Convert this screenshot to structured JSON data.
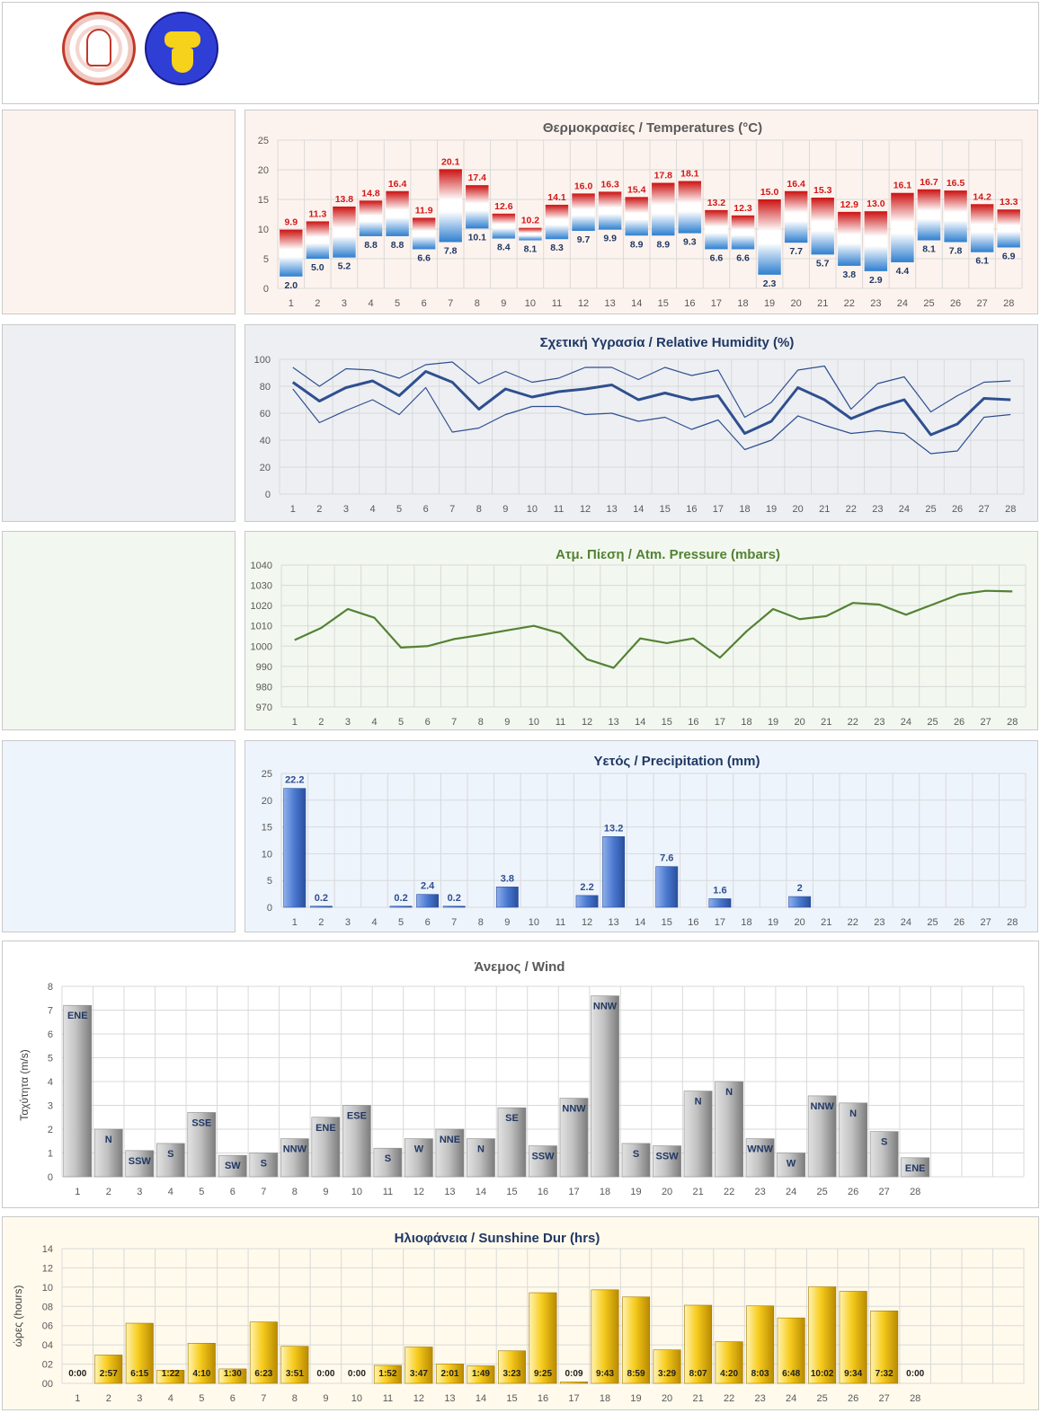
{
  "colors": {
    "temp_bg": "#fdf3ee",
    "hum_bg": "#edeff3",
    "pres_bg": "#f2f8ef",
    "prec_bg": "#eef4fc",
    "sun_bg": "#fffaec",
    "temp_title": "#595959",
    "hum_title": "#203864",
    "pres_title": "#548235",
    "prec_title": "#203864",
    "wind_title": "#595959",
    "sun_title": "#203864"
  },
  "header": {
    "logo_left": "university-seal",
    "logo_right": "meteo-club-logo"
  },
  "chart_data": [
    {
      "id": "temperature",
      "type": "bar",
      "title": "Θερμοκρασίες / Temperatures (°C)",
      "categories": [
        "1",
        "2",
        "3",
        "4",
        "5",
        "6",
        "7",
        "8",
        "9",
        "10",
        "11",
        "12",
        "13",
        "14",
        "15",
        "16",
        "17",
        "18",
        "19",
        "20",
        "21",
        "22",
        "23",
        "24",
        "25",
        "26",
        "27",
        "28"
      ],
      "series": [
        {
          "name": "max",
          "values": [
            9.9,
            11.3,
            13.8,
            14.8,
            16.4,
            11.9,
            20.1,
            17.4,
            12.6,
            10.2,
            14.1,
            16.0,
            16.3,
            15.4,
            17.8,
            18.1,
            13.2,
            12.3,
            15.0,
            16.4,
            15.3,
            12.9,
            13.0,
            16.1,
            16.7,
            16.5,
            14.2,
            13.3
          ]
        },
        {
          "name": "min",
          "values": [
            2.0,
            5.0,
            5.2,
            8.8,
            8.8,
            6.6,
            7.8,
            10.1,
            8.4,
            8.1,
            8.3,
            9.7,
            9.9,
            8.9,
            8.9,
            9.3,
            6.6,
            6.6,
            2.3,
            7.7,
            5.7,
            3.8,
            2.9,
            4.4,
            8.1,
            7.8,
            6.1,
            6.9
          ]
        }
      ],
      "max_labels": [
        "9.9",
        "11.3",
        "13.8",
        "14.8",
        "16.4",
        "11.9",
        "20.1",
        "17.4",
        "12.6",
        "10.2",
        "14.1",
        "16.0",
        "16.3",
        "15.4",
        "17.8",
        "18.1",
        "13.2",
        "12.3",
        "15.0",
        "16.4",
        "15.3",
        "12.9",
        "13.0",
        "16.1",
        "16.7",
        "16.5",
        "14.2",
        "13.3"
      ],
      "min_labels": [
        "2.0",
        "5.0",
        "5.2",
        "8.8",
        "8.8",
        "6.6",
        "7.8",
        "10.1",
        "8.4",
        "8.1",
        "8.3",
        "9.7",
        "9.9",
        "8.9",
        "8.9",
        "9.3",
        "6.6",
        "6.6",
        "2.3",
        "7.7",
        "5.7",
        "3.8",
        "2.9",
        "4.4",
        "8.1",
        "7.8",
        "6.1",
        "6.9"
      ],
      "ylim": [
        0,
        25
      ],
      "yticks": [
        "0",
        "5",
        "10",
        "15",
        "20",
        "25"
      ],
      "grid": true
    },
    {
      "id": "humidity",
      "type": "line",
      "title": "Σχετική Υγρασία / Relative Humidity (%)",
      "categories": [
        "1",
        "2",
        "3",
        "4",
        "5",
        "6",
        "7",
        "8",
        "9",
        "10",
        "11",
        "12",
        "13",
        "14",
        "15",
        "16",
        "17",
        "18",
        "19",
        "20",
        "21",
        "22",
        "23",
        "24",
        "25",
        "26",
        "27",
        "28"
      ],
      "series": [
        {
          "name": "max",
          "values": [
            94,
            80,
            93,
            92,
            86,
            96,
            98,
            82,
            91,
            83,
            86,
            94,
            94,
            85,
            94,
            88,
            92,
            57,
            68,
            92,
            95,
            63,
            82,
            87,
            61,
            73,
            83,
            84
          ]
        },
        {
          "name": "mean",
          "values": [
            83,
            69,
            79,
            84,
            73,
            91,
            83,
            63,
            78,
            72,
            76,
            78,
            81,
            70,
            75,
            70,
            73,
            45,
            54,
            79,
            70,
            56,
            64,
            70,
            44,
            52,
            71,
            70
          ]
        },
        {
          "name": "min",
          "values": [
            78,
            53,
            62,
            70,
            59,
            79,
            46,
            49,
            59,
            65,
            65,
            59,
            60,
            54,
            57,
            48,
            55,
            33,
            40,
            58,
            51,
            45,
            47,
            45,
            30,
            32,
            57,
            59
          ]
        }
      ],
      "ylim": [
        0,
        100
      ],
      "yticks": [
        "0",
        "20",
        "40",
        "60",
        "80",
        "100"
      ],
      "grid": true
    },
    {
      "id": "pressure",
      "type": "line",
      "title": "Ατμ. Πίεση / Atm. Pressure (mbars)",
      "categories": [
        "1",
        "2",
        "3",
        "4",
        "5",
        "6",
        "7",
        "8",
        "9",
        "10",
        "11",
        "12",
        "13",
        "14",
        "15",
        "16",
        "17",
        "18",
        "19",
        "20",
        "21",
        "22",
        "23",
        "24",
        "25",
        "26",
        "27",
        "28"
      ],
      "series": [
        {
          "name": "pressure",
          "values": [
            1003,
            1009,
            1018.3,
            1014,
            999.3,
            1000,
            1003.5,
            1005.5,
            1007.8,
            1010,
            1006.3,
            993.5,
            989.3,
            1003.8,
            1001.5,
            1003.8,
            994.3,
            1007.3,
            1018.3,
            1013.3,
            1014.8,
            1021.3,
            1020.5,
            1015.5,
            1020.5,
            1025.5,
            1027.3,
            1027
          ]
        }
      ],
      "ylim": [
        970,
        1040
      ],
      "yticks": [
        "970",
        "980",
        "990",
        "1000",
        "1010",
        "1020",
        "1030",
        "1040"
      ],
      "grid": true
    },
    {
      "id": "precipitation",
      "type": "bar",
      "title": "Υετός / Precipitation (mm)",
      "categories": [
        "1",
        "2",
        "3",
        "4",
        "5",
        "6",
        "7",
        "8",
        "9",
        "10",
        "11",
        "12",
        "13",
        "14",
        "15",
        "16",
        "17",
        "18",
        "19",
        "20",
        "21",
        "22",
        "23",
        "24",
        "25",
        "26",
        "27",
        "28"
      ],
      "values": [
        22.2,
        0.2,
        null,
        null,
        0.2,
        2.4,
        0.2,
        null,
        3.8,
        null,
        null,
        2.2,
        13.2,
        null,
        7.6,
        null,
        1.6,
        null,
        null,
        2,
        null,
        null,
        null,
        null,
        null,
        null,
        null,
        null
      ],
      "labels": [
        "22.2",
        "0.2",
        "",
        "",
        "0.2",
        "2.4",
        "0.2",
        "",
        "3.8",
        "",
        "",
        "2.2",
        "13.2",
        "",
        "7.6",
        "",
        "1.6",
        "",
        "",
        "2",
        "",
        "",
        "",
        "",
        "",
        "",
        "",
        ""
      ],
      "ylim": [
        0,
        25
      ],
      "yticks": [
        "0",
        "5",
        "10",
        "15",
        "20",
        "25"
      ],
      "grid": true
    },
    {
      "id": "wind",
      "type": "bar",
      "title": "Άνεμος / Wind",
      "ylabel": "Ταχύτητα  (m/s)",
      "categories": [
        "1",
        "2",
        "3",
        "4",
        "5",
        "6",
        "7",
        "8",
        "9",
        "10",
        "11",
        "12",
        "13",
        "14",
        "15",
        "16",
        "17",
        "18",
        "19",
        "20",
        "21",
        "22",
        "23",
        "24",
        "25",
        "26",
        "27",
        "28"
      ],
      "values": [
        7.2,
        2.0,
        1.1,
        1.4,
        2.7,
        0.9,
        1.0,
        1.6,
        2.5,
        3.0,
        1.2,
        1.6,
        2.0,
        1.6,
        2.9,
        1.3,
        3.3,
        7.6,
        1.4,
        1.3,
        3.6,
        4.0,
        1.6,
        1.0,
        3.4,
        3.1,
        1.9,
        0.8
      ],
      "directions": [
        "ENE",
        "N",
        "SSW",
        "S",
        "SSE",
        "SW",
        "S",
        "NNW",
        "ENE",
        "ESE",
        "S",
        "W",
        "NNE",
        "N",
        "SE",
        "SSW",
        "NNW",
        "NNW",
        "S",
        "SSW",
        "N",
        "N",
        "WNW",
        "W",
        "NNW",
        "N",
        "S",
        "ENE"
      ],
      "ylim": [
        0,
        8
      ],
      "yticks": [
        "0",
        "1",
        "2",
        "3",
        "4",
        "5",
        "6",
        "7",
        "8"
      ],
      "grid": true
    },
    {
      "id": "sunshine",
      "type": "bar",
      "title": "Ηλιοφάνεια / Sunshine Dur (hrs)",
      "ylabel": "ώρες (hours)",
      "categories": [
        "1",
        "2",
        "3",
        "4",
        "5",
        "6",
        "7",
        "8",
        "9",
        "10",
        "11",
        "12",
        "13",
        "14",
        "15",
        "16",
        "17",
        "18",
        "19",
        "20",
        "21",
        "22",
        "23",
        "24",
        "25",
        "26",
        "27",
        "28"
      ],
      "values": [
        0,
        2.95,
        6.25,
        1.37,
        4.17,
        1.5,
        6.38,
        3.85,
        0,
        0,
        1.87,
        3.78,
        2.02,
        1.82,
        3.38,
        9.42,
        0.15,
        9.72,
        8.98,
        3.48,
        8.12,
        4.33,
        8.05,
        6.8,
        10.03,
        9.57,
        7.53,
        0
      ],
      "labels": [
        "0:00",
        "2:57",
        "6:15",
        "1:22",
        "4:10",
        "1:30",
        "6:23",
        "3:51",
        "0:00",
        "0:00",
        "1:52",
        "3:47",
        "2:01",
        "1:49",
        "3:23",
        "9:25",
        "0:09",
        "9:43",
        "8:59",
        "3:29",
        "8:07",
        "4:20",
        "8:03",
        "6:48",
        "10:02",
        "9:34",
        "7:32",
        "0:00"
      ],
      "ylim": [
        0,
        14
      ],
      "yticks": [
        "00",
        "02",
        "04",
        "06",
        "08",
        "10",
        "12",
        "14"
      ],
      "grid": true
    }
  ]
}
